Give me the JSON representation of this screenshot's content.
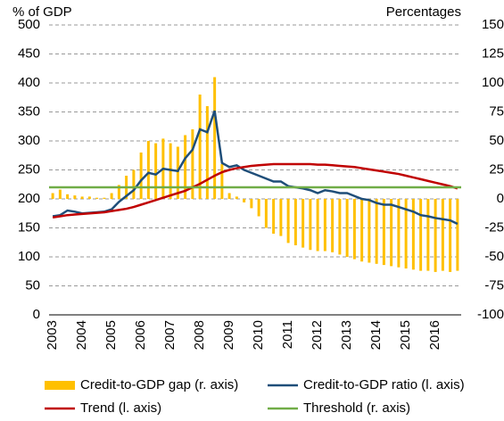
{
  "chart_data": {
    "type": "combo",
    "ylabel": "% of GDP",
    "y2label": "Percentages",
    "categories": [
      "2003",
      null,
      null,
      null,
      "2004",
      null,
      null,
      null,
      "2005",
      null,
      null,
      null,
      "2006",
      null,
      null,
      null,
      "2007",
      null,
      null,
      null,
      "2008",
      null,
      null,
      null,
      "2009",
      null,
      null,
      null,
      "2010",
      null,
      null,
      null,
      "2011",
      null,
      null,
      null,
      "2012",
      null,
      null,
      null,
      "2013",
      null,
      null,
      null,
      "2014",
      null,
      null,
      null,
      "2015",
      null,
      null,
      null,
      "2016",
      null,
      null,
      null
    ],
    "series": [
      {
        "name": "Credit-to-GDP gap (r. axis)",
        "type": "bar",
        "axis": "y2",
        "color": "#ffc000",
        "values": [
          5,
          8,
          4,
          3,
          2,
          2,
          1,
          1,
          5,
          12,
          20,
          25,
          40,
          50,
          48,
          52,
          48,
          45,
          55,
          60,
          90,
          80,
          105,
          30,
          5,
          2,
          -3,
          -8,
          -15,
          -25,
          -30,
          -32,
          -38,
          -40,
          -42,
          -44,
          -45,
          -45,
          -46,
          -48,
          -50,
          -52,
          -54,
          -55,
          -56,
          -57,
          -58,
          -59,
          -60,
          -61,
          -62,
          -62,
          -63,
          -62,
          -63,
          -62
        ]
      },
      {
        "name": "Credit-to-GDP ratio (l. axis)",
        "type": "line",
        "color": "#1f4e79",
        "values": [
          170,
          172,
          180,
          178,
          175,
          176,
          177,
          178,
          182,
          195,
          205,
          215,
          232,
          245,
          242,
          252,
          250,
          248,
          270,
          285,
          320,
          315,
          352,
          262,
          255,
          258,
          250,
          245,
          240,
          235,
          230,
          230,
          222,
          220,
          218,
          215,
          210,
          215,
          213,
          210,
          210,
          205,
          200,
          198,
          193,
          190,
          190,
          186,
          182,
          178,
          172,
          170,
          167,
          165,
          163,
          157
        ]
      },
      {
        "name": "Trend (l. axis)",
        "type": "line",
        "color": "#c00000",
        "values": [
          168,
          170,
          172,
          173,
          174,
          175,
          176,
          177,
          179,
          181,
          183,
          186,
          190,
          194,
          198,
          202,
          206,
          210,
          214,
          220,
          226,
          233,
          240,
          246,
          250,
          253,
          255,
          257,
          258,
          259,
          260,
          260,
          260,
          260,
          260,
          260,
          259,
          259,
          258,
          257,
          256,
          255,
          253,
          251,
          249,
          247,
          245,
          243,
          240,
          237,
          234,
          231,
          228,
          225,
          222,
          218
        ]
      },
      {
        "name": "Threshold (r. axis)",
        "type": "hline",
        "axis": "y2",
        "color": "#70ad47",
        "value": 10
      }
    ],
    "ylim": [
      0,
      500
    ],
    "yticks": [
      0,
      50,
      100,
      150,
      200,
      250,
      300,
      350,
      400,
      450,
      500
    ],
    "y2lim": [
      -100,
      150
    ],
    "y2ticks": [
      -100,
      -75,
      -50,
      -25,
      0,
      25,
      50,
      75,
      100,
      125,
      150
    ],
    "grid": true
  }
}
